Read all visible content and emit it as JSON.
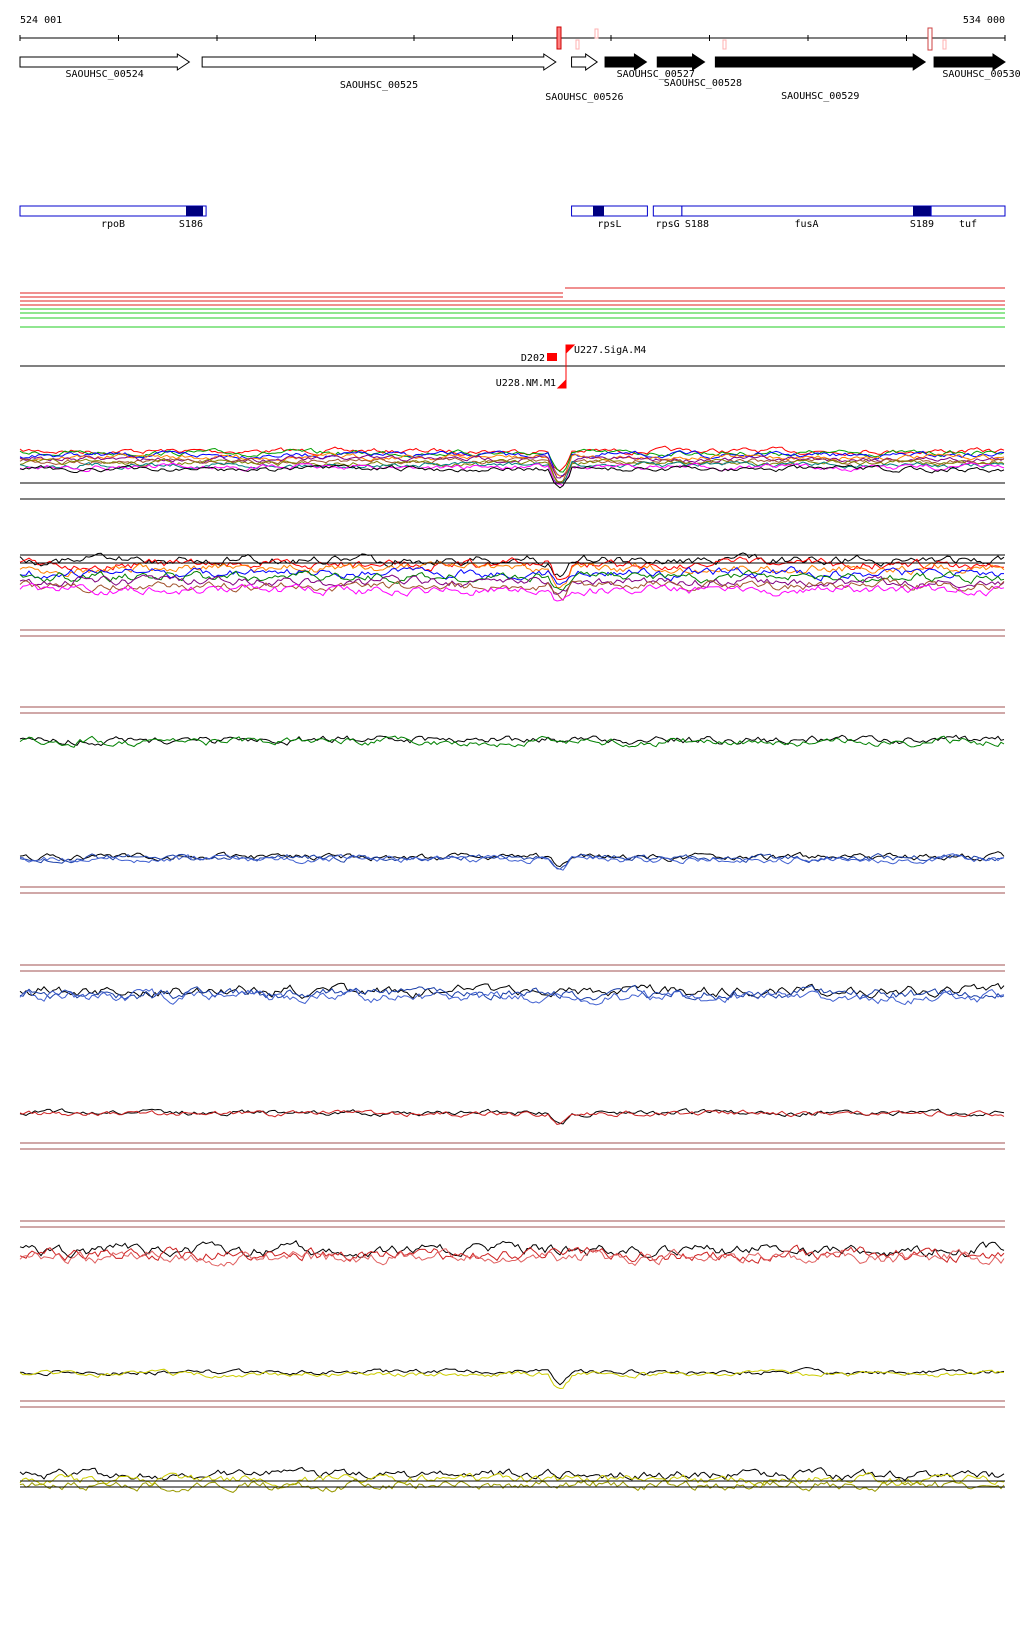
{
  "ruler": {
    "start_label": "524 001",
    "end_label": "534 000",
    "start_bp": 524001,
    "end_bp": 534000
  },
  "genes": [
    {
      "name": "SAOUHSC_00524",
      "strand": "+",
      "filled": false,
      "start_bp": 524001,
      "end_bp": 525720
    },
    {
      "name": "SAOUHSC_00525",
      "strand": "+",
      "filled": false,
      "start_bp": 525850,
      "end_bp": 529440
    },
    {
      "name": "SAOUHSC_00526",
      "strand": "+",
      "filled": false,
      "start_bp": 529600,
      "end_bp": 529860
    },
    {
      "name": "SAOUHSC_00527",
      "strand": "+",
      "filled": true,
      "start_bp": 529940,
      "end_bp": 530360
    },
    {
      "name": "SAOUHSC_00528",
      "strand": "+",
      "filled": true,
      "start_bp": 530470,
      "end_bp": 530950
    },
    {
      "name": "SAOUHSC_00529",
      "strand": "+",
      "filled": true,
      "start_bp": 531060,
      "end_bp": 533190
    },
    {
      "name": "SAOUHSC_00530",
      "strand": "+",
      "filled": true,
      "start_bp": 533280,
      "end_bp": 534000
    }
  ],
  "annotation_genes": [
    {
      "name": "rpoB",
      "start_bp": 524001,
      "end_bp": 525890,
      "block": "S186"
    },
    {
      "name": "rpsL",
      "start_bp": 529600,
      "end_bp": 530370,
      "block": ""
    },
    {
      "name": "rpsG",
      "start_bp": 530430,
      "end_bp": 530720,
      "block": "S188"
    },
    {
      "name": "fusA",
      "start_bp": 530720,
      "end_bp": 533250,
      "block": "S189"
    },
    {
      "name": "tuf",
      "start_bp": 533250,
      "end_bp": 534000,
      "block": ""
    }
  ],
  "markers": [
    {
      "name": "D202",
      "type": "box"
    },
    {
      "name": "U227.SigA.M4",
      "type": "flag-forward"
    },
    {
      "name": "U228.NM.M1",
      "type": "flag-reverse"
    }
  ],
  "colors": {
    "track_red": "#cc0000",
    "track_green": "#00cc00",
    "dark_blue": "#000080",
    "flag_red": "#ff0000",
    "box_outline": "#0000cc",
    "separator": "#a05050",
    "green_signal": "#008000",
    "blue_signal": "#1a3fa8",
    "red_signal": "#cc2020",
    "yellow_signal": "#cccc00"
  },
  "expression_tracks": [
    {
      "id": "overlay-1",
      "colors": [
        "#ff0000",
        "#00a000",
        "#0000ff",
        "#ff8000",
        "#800080",
        "#a0522d",
        "#808000",
        "#008080",
        "#ff00ff",
        "#000000"
      ]
    },
    {
      "id": "overlay-2",
      "colors": [
        "#000000",
        "#ff0000",
        "#ff8000",
        "#0000ff",
        "#008000",
        "#800080",
        "#a0522d",
        "#ff00ff"
      ]
    },
    {
      "id": "green",
      "colors": [
        "#000000",
        "#008000"
      ]
    },
    {
      "id": "blue-1",
      "colors": [
        "#000000",
        "#1a3fa8",
        "#4060d0"
      ]
    },
    {
      "id": "blue-2",
      "colors": [
        "#000000",
        "#1a3fa8",
        "#4060d0"
      ]
    },
    {
      "id": "red-1",
      "colors": [
        "#000000",
        "#cc2020"
      ]
    },
    {
      "id": "red-2",
      "colors": [
        "#000000",
        "#cc2020",
        "#e06060"
      ]
    },
    {
      "id": "yellow-1",
      "colors": [
        "#000000",
        "#cccc00"
      ]
    },
    {
      "id": "yellow-2",
      "colors": [
        "#000000",
        "#cccc00",
        "#999900"
      ]
    }
  ]
}
